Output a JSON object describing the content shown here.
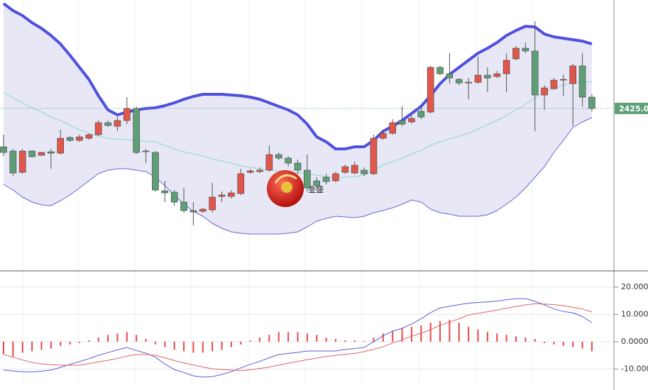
{
  "watermark": "金盛",
  "chart_data": [
    {
      "type": "candlestick",
      "categories": [
        null,
        null,
        null,
        null,
        null,
        null,
        null,
        null,
        null,
        null,
        null,
        null,
        null,
        null,
        null,
        null,
        null,
        null,
        null,
        null,
        null,
        null,
        null,
        null,
        null,
        null,
        null,
        null,
        null,
        null,
        null,
        null,
        null,
        null,
        null,
        null,
        null,
        null,
        null,
        null,
        null,
        null,
        null,
        null,
        null,
        null,
        null,
        null,
        null,
        null,
        null,
        null,
        null,
        null,
        null,
        null,
        null,
        null,
        null,
        null,
        null,
        null,
        null
      ],
      "open": [
        2414.2,
        2413.0,
        2407.0,
        2413.0,
        2411.8,
        2412.8,
        2412.4,
        2416.8,
        2416.0,
        2416.6,
        2417.6,
        2421.0,
        2420.0,
        2421.6,
        2425.0,
        2413.0,
        2412.6,
        2401.8,
        2401.4,
        2398.6,
        2396.2,
        2396.0,
        2396.4,
        2400.2,
        2400.2,
        2401.0,
        2407.0,
        2407.2,
        2407.6,
        2412.0,
        2411.0,
        2409.6,
        2407.6,
        2404.6,
        2405.6,
        2404.6,
        2407.0,
        2406.8,
        2407.6,
        2406.6,
        2416.6,
        2418.0,
        2421.6,
        2421.2,
        2424.2,
        2424.0,
        2436.6,
        2434.8,
        2433.2,
        2432.2,
        2432.4,
        2434.4,
        2434.0,
        2434.8,
        2439.0,
        2442.0,
        2441.2,
        2428.8,
        2430.6,
        2433.0,
        2432.0,
        2437.0,
        2428.2
      ],
      "close": [
        2412.6,
        2406.8,
        2413.0,
        2411.4,
        2412.6,
        2412.4,
        2416.6,
        2416.0,
        2417.0,
        2417.6,
        2421.0,
        2420.2,
        2421.6,
        2425.0,
        2412.6,
        2412.8,
        2402.0,
        2401.2,
        2398.6,
        2396.2,
        2395.8,
        2396.6,
        2400.0,
        2400.6,
        2401.2,
        2406.6,
        2407.4,
        2407.6,
        2412.0,
        2411.0,
        2409.6,
        2407.6,
        2402.6,
        2403.2,
        2404.4,
        2406.6,
        2408.6,
        2409.0,
        2406.6,
        2416.6,
        2418.0,
        2421.0,
        2420.6,
        2422.2,
        2422.6,
        2436.6,
        2434.8,
        2433.6,
        2432.2,
        2432.4,
        2434.4,
        2433.6,
        2434.8,
        2438.6,
        2442.0,
        2441.2,
        2428.8,
        2430.8,
        2433.0,
        2433.2,
        2437.0,
        2428.2,
        2425.02
      ],
      "high": [
        2417.6,
        2413.6,
        2413.6,
        2413.2,
        2412.8,
        2413.6,
        2419.0,
        2417.2,
        2417.6,
        2418.0,
        2421.6,
        2421.6,
        2422.6,
        2428.2,
        2425.6,
        2413.6,
        2413.0,
        2404.6,
        2402.0,
        2402.6,
        2398.6,
        2397.0,
        2404.0,
        2401.6,
        2402.0,
        2408.0,
        2408.0,
        2408.4,
        2414.6,
        2412.6,
        2411.6,
        2410.6,
        2412.0,
        2405.6,
        2406.6,
        2407.2,
        2409.2,
        2410.0,
        2408.4,
        2417.6,
        2418.8,
        2422.0,
        2425.6,
        2423.0,
        2425.6,
        2437.0,
        2437.0,
        2440.6,
        2433.6,
        2433.6,
        2439.6,
        2436.6,
        2435.6,
        2440.6,
        2442.6,
        2443.6,
        2449.6,
        2431.6,
        2433.6,
        2434.6,
        2437.6,
        2440.6,
        2429.0
      ],
      "low": [
        2411.6,
        2406.0,
        2406.6,
        2411.2,
        2411.6,
        2408.0,
        2412.0,
        2415.6,
        2415.6,
        2416.2,
        2417.2,
        2419.8,
        2418.6,
        2420.6,
        2412.2,
        2409.6,
        2401.6,
        2398.6,
        2397.6,
        2395.6,
        2392.0,
        2395.6,
        2395.6,
        2398.6,
        2399.6,
        2400.6,
        2406.6,
        2406.8,
        2407.2,
        2410.4,
        2408.6,
        2406.6,
        2401.6,
        2402.6,
        2403.6,
        2404.2,
        2406.6,
        2406.4,
        2406.0,
        2406.2,
        2416.2,
        2417.6,
        2420.0,
        2420.8,
        2422.0,
        2423.6,
        2434.4,
        2432.0,
        2431.6,
        2427.6,
        2432.0,
        2429.6,
        2433.6,
        2429.6,
        2438.6,
        2440.6,
        2418.6,
        2424.6,
        2430.2,
        2428.6,
        2420.0,
        2425.6,
        2424.2
      ],
      "up_color": "#e0564a",
      "down_color": "#5e9f78",
      "overlays": [
        {
          "role": "upper",
          "color": "#4f4fe0",
          "values": [
            2454.6,
            2452.6,
            2451.2,
            2449.2,
            2447.6,
            2445.6,
            2443.2,
            2440.0,
            2436.6,
            2433.2,
            2428.6,
            2424.6,
            2423.2,
            2424.0,
            2424.6,
            2425.0,
            2425.2,
            2425.8,
            2426.6,
            2427.6,
            2428.4,
            2429.0,
            2429.0,
            2429.0,
            2428.8,
            2428.6,
            2428.2,
            2427.6,
            2426.6,
            2425.6,
            2424.6,
            2423.2,
            2420.6,
            2417.0,
            2415.6,
            2413.6,
            2413.6,
            2414.2,
            2414.2,
            2416.0,
            2418.6,
            2420.0,
            2421.6,
            2423.6,
            2425.6,
            2428.6,
            2432.0,
            2434.6,
            2436.6,
            2438.6,
            2440.6,
            2442.0,
            2443.6,
            2445.6,
            2447.0,
            2448.2,
            2448.0,
            2446.0,
            2445.2,
            2444.8,
            2444.4,
            2444.0,
            2443.2
          ]
        },
        {
          "role": "middle",
          "color": "#8fd8cf",
          "values": [
            2429.6,
            2428.0,
            2426.6,
            2425.2,
            2424.0,
            2422.6,
            2421.6,
            2420.2,
            2419.0,
            2418.0,
            2417.2,
            2416.6,
            2416.4,
            2416.2,
            2416.0,
            2415.8,
            2415.6,
            2414.6,
            2413.6,
            2412.8,
            2412.2,
            2411.6,
            2410.8,
            2410.2,
            2409.6,
            2408.8,
            2408.4,
            2408.0,
            2407.6,
            2407.4,
            2407.2,
            2406.8,
            2406.6,
            2406.2,
            2405.8,
            2405.6,
            2405.6,
            2405.8,
            2406.2,
            2407.6,
            2409.0,
            2410.0,
            2411.0,
            2412.2,
            2413.2,
            2414.6,
            2415.6,
            2416.4,
            2417.2,
            2418.0,
            2419.2,
            2420.4,
            2421.6,
            2423.0,
            2424.6,
            2426.2,
            2428.0,
            2429.6,
            2430.8,
            2431.6,
            2432.2,
            2432.4,
            2432.6
          ]
        },
        {
          "role": "lower",
          "color": "#6767dd",
          "values": [
            2403.6,
            2402.0,
            2400.0,
            2398.6,
            2397.8,
            2397.6,
            2399.0,
            2400.6,
            2402.6,
            2404.6,
            2406.6,
            2407.6,
            2408.0,
            2408.0,
            2407.6,
            2407.2,
            2405.6,
            2403.2,
            2400.6,
            2398.0,
            2396.0,
            2394.6,
            2392.6,
            2391.2,
            2390.2,
            2389.8,
            2389.6,
            2389.6,
            2389.6,
            2389.6,
            2389.8,
            2390.2,
            2391.6,
            2393.2,
            2394.0,
            2394.6,
            2394.4,
            2394.2,
            2394.6,
            2395.6,
            2396.2,
            2397.0,
            2398.0,
            2399.2,
            2398.6,
            2396.6,
            2395.6,
            2395.2,
            2394.6,
            2394.6,
            2394.6,
            2395.0,
            2396.2,
            2398.0,
            2400.0,
            2402.6,
            2405.6,
            2408.6,
            2412.6,
            2416.0,
            2419.6,
            2421.2,
            2422.4
          ]
        }
      ],
      "band_fill": "#e3e3f3",
      "ylim": [
        2379.6,
        2455.6
      ],
      "last_price": 2425.02,
      "last_color": "#5e9f78"
    },
    {
      "type": "macd",
      "categories": [
        null,
        null,
        null,
        null,
        null,
        null,
        null,
        null,
        null,
        null,
        null,
        null,
        null,
        null,
        null,
        null,
        null,
        null,
        null,
        null,
        null,
        null,
        null,
        null,
        null,
        null,
        null,
        null,
        null,
        null,
        null,
        null,
        null,
        null,
        null,
        null,
        null,
        null,
        null,
        null,
        null,
        null,
        null,
        null,
        null,
        null,
        null,
        null,
        null,
        null,
        null,
        null,
        null,
        null,
        null,
        null,
        null,
        null,
        null,
        null,
        null,
        null,
        null
      ],
      "histogram": {
        "color": "#e8474a",
        "values": [
          -4.5,
          -5.5,
          -4,
          -3.5,
          -3,
          -2.5,
          -1.5,
          -1,
          -0.5,
          0.5,
          1.5,
          2.5,
          3,
          3.5,
          2.5,
          1,
          -1,
          -2,
          -3,
          -3.5,
          -4,
          -4,
          -3.5,
          -3,
          -2,
          -1,
          0.5,
          1.5,
          2.5,
          3.5,
          3.5,
          3.5,
          3,
          2.5,
          1.5,
          1,
          0.5,
          0.5,
          0.3,
          1.5,
          3,
          4,
          5,
          5.5,
          6,
          7,
          7.5,
          8,
          7,
          5.5,
          4.5,
          3.5,
          3,
          2.5,
          2,
          1.5,
          1,
          -0.5,
          -1,
          -1.5,
          -2,
          -2.5,
          -3.5
        ]
      },
      "series": [
        {
          "color": "#5b5bd6",
          "values": [
            -10.4,
            -10.7,
            -11.0,
            -11.1,
            -10.8,
            -10.4,
            -9.4,
            -8.3,
            -7.3,
            -6.2,
            -5.0,
            -4.0,
            -3.0,
            -2.1,
            -3.2,
            -4.2,
            -5.7,
            -8.2,
            -10.2,
            -11.3,
            -12.5,
            -13.0,
            -12.8,
            -12.0,
            -11.0,
            -9.6,
            -8.3,
            -7.2,
            -5.9,
            -4.7,
            -4.3,
            -3.9,
            -3.4,
            -3.4,
            -3.4,
            -3.4,
            -2.8,
            -2.5,
            -2.1,
            0.0,
            2.2,
            3.9,
            4.9,
            6.5,
            8.4,
            10.6,
            12.4,
            13.0,
            13.6,
            14.1,
            14.4,
            14.6,
            14.9,
            15.4,
            15.8,
            15.8,
            14.8,
            13.5,
            12.0,
            11.1,
            10.6,
            9.2,
            7.0
          ]
        },
        {
          "color": "#e06060",
          "values": [
            -4.7,
            -5.7,
            -6.7,
            -7.6,
            -8.1,
            -8.4,
            -8.6,
            -8.6,
            -8.6,
            -8.0,
            -7.4,
            -6.8,
            -6.1,
            -5.3,
            -4.7,
            -4.7,
            -5.0,
            -5.9,
            -6.9,
            -7.8,
            -8.5,
            -9.3,
            -9.9,
            -10.2,
            -10.4,
            -10.6,
            -10.3,
            -9.8,
            -9.3,
            -8.6,
            -7.9,
            -7.2,
            -6.6,
            -6.0,
            -5.4,
            -5.0,
            -4.6,
            -4.3,
            -3.6,
            -2.8,
            -1.8,
            -0.5,
            0.7,
            2.0,
            3.1,
            4.4,
            6.0,
            7.2,
            8.4,
            9.8,
            10.4,
            11.0,
            11.6,
            12.3,
            12.9,
            13.5,
            13.9,
            13.8,
            13.6,
            13.2,
            12.6,
            12.0,
            10.9
          ]
        }
      ],
      "ylim": [
        -16.4,
        25.7
      ],
      "yticks": [
        {
          "value": 20,
          "label": "20.0000"
        },
        {
          "value": 10,
          "label": "10.0000"
        },
        {
          "value": 0,
          "label": "0.0000"
        },
        {
          "value": -10,
          "label": "-10.0000"
        }
      ],
      "grid": true
    }
  ]
}
